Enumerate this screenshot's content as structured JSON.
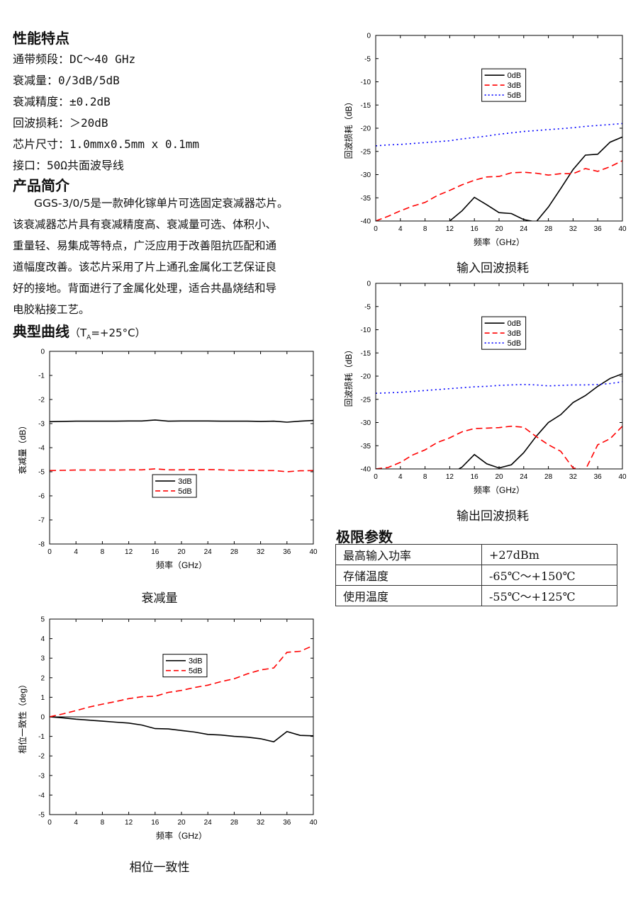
{
  "features": {
    "heading": "性能特点",
    "items": [
      {
        "label": "通带频段：",
        "value": "DC～40 GHz"
      },
      {
        "label": "衰减量：",
        "value": "0/3dB/5dB"
      },
      {
        "label": "衰减精度：",
        "value": "±0.2dB"
      },
      {
        "label": "回波损耗：",
        "value": "＞20dB"
      },
      {
        "label": "芯片尺寸：",
        "value": "1.0mmx0.5mm x 0.1mm"
      },
      {
        "label": "接口：",
        "value": "50Ω共面波导线"
      }
    ]
  },
  "intro": {
    "heading": "产品简介",
    "lines": [
      "GGS-3/0/5是一款砷化镓单片可选固定衰减器芯片。",
      "该衰减器芯片具有衰减精度高、衰减量可选、体积小、",
      "重量轻、易集成等特点，广泛应用于改善阻抗匹配和通",
      "道幅度改善。该芯片采用了片上通孔金属化工艺保证良",
      "好的接地。背面进行了金属化处理，适合共晶烧结和导",
      "电胶粘接工艺。"
    ]
  },
  "curves": {
    "heading": "典型曲线",
    "cond_prefix": "（T",
    "cond_sub": "A",
    "cond_suffix": "=+25",
    "cond_unit": "°C）"
  },
  "limits": {
    "heading": "极限参数",
    "rows": [
      {
        "param": "最高输入功率",
        "value": "+27dBm"
      },
      {
        "param": "存储温度",
        "value": "-65℃～+150℃"
      },
      {
        "param": "使用温度",
        "value": "-55℃～+125℃"
      }
    ]
  },
  "chart_data": [
    {
      "id": "attenuation",
      "type": "line",
      "caption": "衰减量",
      "xlabel": "频率（GHz）",
      "ylabel": "衰减量（dB）",
      "xlim": [
        0,
        40
      ],
      "ylim": [
        -8,
        0
      ],
      "xticks": [
        0,
        4,
        8,
        12,
        16,
        20,
        24,
        28,
        32,
        36,
        40
      ],
      "yticks": [
        0,
        -1,
        -2,
        -3,
        -4,
        -5,
        -6,
        -7,
        -8
      ],
      "legend_position": "center",
      "series": [
        {
          "name": "3dB",
          "color": "#000000",
          "dash": "solid",
          "x": [
            0,
            2,
            4,
            6,
            8,
            10,
            12,
            14,
            16,
            18,
            20,
            22,
            24,
            26,
            28,
            30,
            32,
            34,
            36,
            38,
            40
          ],
          "y": [
            -2.92,
            -2.91,
            -2.9,
            -2.9,
            -2.9,
            -2.9,
            -2.89,
            -2.89,
            -2.85,
            -2.9,
            -2.89,
            -2.89,
            -2.89,
            -2.9,
            -2.9,
            -2.9,
            -2.91,
            -2.9,
            -2.94,
            -2.9,
            -2.87
          ]
        },
        {
          "name": "5dB",
          "color": "#ff0000",
          "dash": "dashed",
          "x": [
            0,
            2,
            4,
            6,
            8,
            10,
            12,
            14,
            16,
            18,
            20,
            22,
            24,
            26,
            28,
            30,
            32,
            34,
            36,
            38,
            40
          ],
          "y": [
            -4.95,
            -4.94,
            -4.93,
            -4.93,
            -4.93,
            -4.93,
            -4.92,
            -4.92,
            -4.88,
            -4.92,
            -4.92,
            -4.91,
            -4.91,
            -4.92,
            -4.94,
            -4.94,
            -4.95,
            -4.95,
            -5.0,
            -4.96,
            -4.95
          ]
        }
      ]
    },
    {
      "id": "phase",
      "type": "line",
      "caption": "相位一致性",
      "xlabel": "频率（GHz）",
      "ylabel": "相位一致性（deg）",
      "xlim": [
        0,
        40
      ],
      "ylim": [
        -5,
        5
      ],
      "xticks": [
        0,
        4,
        8,
        12,
        16,
        20,
        24,
        28,
        32,
        36,
        40
      ],
      "yticks": [
        5,
        4,
        3,
        2,
        1,
        0,
        -1,
        -2,
        -3,
        -4,
        -5
      ],
      "legend_position": "top-center",
      "series": [
        {
          "name": "3dB",
          "color": "#000000",
          "dash": "solid",
          "x": [
            0,
            2,
            4,
            6,
            8,
            10,
            12,
            14,
            16,
            18,
            20,
            22,
            24,
            26,
            28,
            30,
            32,
            34,
            36,
            38,
            40
          ],
          "y": [
            0,
            -0.05,
            -0.12,
            -0.17,
            -0.22,
            -0.27,
            -0.32,
            -0.42,
            -0.6,
            -0.62,
            -0.7,
            -0.78,
            -0.9,
            -0.93,
            -1.0,
            -1.04,
            -1.12,
            -1.28,
            -0.75,
            -0.95,
            -0.97
          ]
        },
        {
          "name": "5dB",
          "color": "#ff0000",
          "dash": "dashed",
          "x": [
            0,
            2,
            4,
            6,
            8,
            10,
            12,
            14,
            16,
            18,
            20,
            22,
            24,
            26,
            28,
            30,
            32,
            34,
            36,
            38,
            40
          ],
          "y": [
            0,
            0.15,
            0.32,
            0.5,
            0.65,
            0.78,
            0.93,
            1.03,
            1.05,
            1.25,
            1.35,
            1.5,
            1.62,
            1.8,
            1.95,
            2.2,
            2.4,
            2.5,
            3.3,
            3.35,
            3.65
          ]
        }
      ]
    },
    {
      "id": "input_return_loss",
      "type": "line",
      "caption": "输入回波损耗",
      "xlabel": "频率（GHz）",
      "ylabel": "回波损耗（dB）",
      "xlim": [
        0,
        40
      ],
      "ylim": [
        -40,
        0
      ],
      "xticks": [
        0,
        4,
        8,
        12,
        16,
        20,
        24,
        28,
        32,
        36,
        40
      ],
      "yticks": [
        0,
        -5,
        -10,
        -15,
        -20,
        -25,
        -30,
        -35,
        -40
      ],
      "legend_position": "top-center",
      "series": [
        {
          "name": "0dB",
          "color": "#000000",
          "dash": "solid",
          "x": [
            12,
            14,
            16,
            18,
            20,
            22,
            24,
            26,
            28,
            30,
            32,
            34,
            36,
            38,
            40
          ],
          "y": [
            -40,
            -37.8,
            -34.9,
            -36.5,
            -38.2,
            -38.4,
            -39.7,
            -40.2,
            -37,
            -33,
            -28.9,
            -25.8,
            -25.6,
            -23,
            -21.9
          ]
        },
        {
          "name": "3dB",
          "color": "#ff0000",
          "dash": "dashed",
          "x": [
            0,
            2,
            4,
            6,
            8,
            10,
            12,
            14,
            16,
            18,
            20,
            22,
            24,
            26,
            28,
            30,
            32,
            34,
            36,
            38,
            40
          ],
          "y": [
            -40,
            -39,
            -37.8,
            -36.8,
            -36,
            -34.5,
            -33.4,
            -32.2,
            -31.2,
            -30.5,
            -30.4,
            -29.6,
            -29.5,
            -29.7,
            -30.1,
            -29.8,
            -29.8,
            -28.7,
            -29.3,
            -28.3,
            -27
          ]
        },
        {
          "name": "5dB",
          "color": "#0000ff",
          "dash": "dotted",
          "x": [
            0,
            2,
            4,
            6,
            8,
            10,
            12,
            14,
            16,
            18,
            20,
            22,
            24,
            26,
            28,
            30,
            32,
            34,
            36,
            38,
            40
          ],
          "y": [
            -23.8,
            -23.6,
            -23.5,
            -23.3,
            -23.1,
            -22.9,
            -22.7,
            -22.3,
            -22,
            -21.7,
            -21.3,
            -21,
            -20.7,
            -20.5,
            -20.3,
            -20.1,
            -19.9,
            -19.6,
            -19.4,
            -19.2,
            -19
          ]
        }
      ]
    },
    {
      "id": "output_return_loss",
      "type": "line",
      "caption": "输出回波损耗",
      "xlabel": "频率（GHz）",
      "ylabel": "回波损耗（dB）",
      "xlim": [
        0,
        40
      ],
      "ylim": [
        -40,
        0
      ],
      "xticks": [
        0,
        4,
        8,
        12,
        16,
        20,
        24,
        28,
        32,
        36,
        40
      ],
      "yticks": [
        0,
        -5,
        -10,
        -15,
        -20,
        -25,
        -30,
        -35,
        -40
      ],
      "legend_position": "top-center",
      "series": [
        {
          "name": "0dB",
          "color": "#000000",
          "dash": "solid",
          "x": [
            13.5,
            14,
            16,
            18,
            20,
            22,
            24,
            26,
            28,
            30,
            32,
            34,
            36,
            38,
            40
          ],
          "y": [
            -40,
            -39.6,
            -36.9,
            -38.9,
            -39.8,
            -39.1,
            -36.5,
            -33,
            -30,
            -28.3,
            -25.7,
            -24.2,
            -22.2,
            -20.5,
            -19.5
          ]
        },
        {
          "name": "3dB",
          "color": "#ff0000",
          "dash": "dashed",
          "x": [
            0,
            2,
            4,
            6,
            8,
            10,
            12,
            14,
            16,
            18,
            20,
            22,
            24,
            26,
            28,
            30,
            32,
            34,
            36,
            38,
            40
          ],
          "y": [
            -40,
            -39.7,
            -38.6,
            -37,
            -35.9,
            -34.3,
            -33.3,
            -32,
            -31.3,
            -31.2,
            -31.1,
            -30.8,
            -31,
            -33,
            -34.8,
            -36.2,
            -39.8,
            -40.2,
            -34.8,
            -33.5,
            -30.8
          ]
        },
        {
          "name": "5dB",
          "color": "#0000ff",
          "dash": "dotted",
          "x": [
            0,
            2,
            4,
            6,
            8,
            10,
            12,
            14,
            16,
            18,
            20,
            22,
            24,
            26,
            28,
            30,
            32,
            34,
            36,
            38,
            40
          ],
          "y": [
            -23.7,
            -23.6,
            -23.5,
            -23.3,
            -23.1,
            -22.9,
            -22.7,
            -22.5,
            -22.3,
            -22.2,
            -22,
            -21.9,
            -21.8,
            -21.9,
            -22.1,
            -22,
            -21.9,
            -21.9,
            -21.8,
            -21.6,
            -21.2
          ]
        }
      ]
    }
  ]
}
